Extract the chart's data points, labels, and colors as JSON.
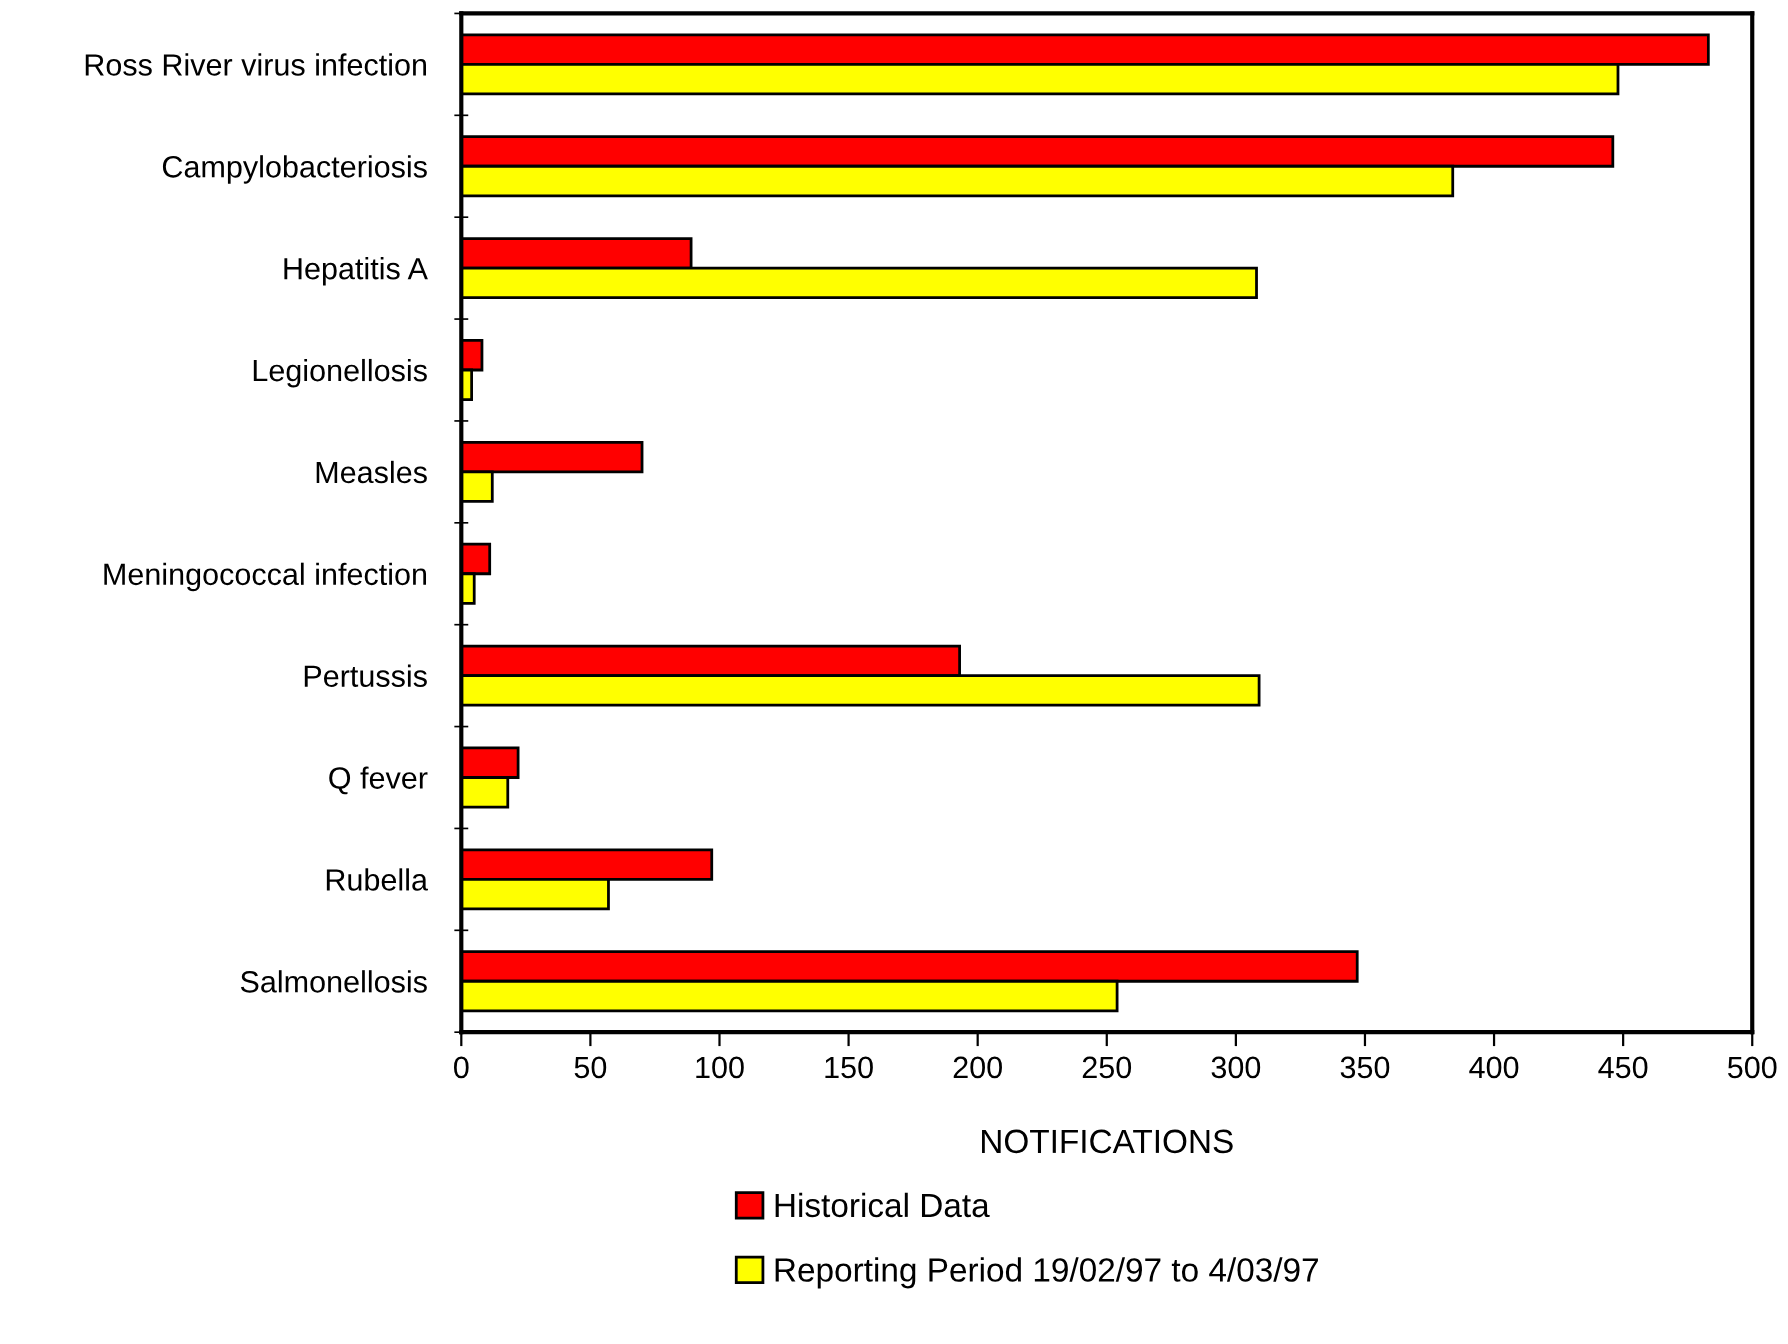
{
  "chart_data": {
    "type": "bar",
    "orientation": "horizontal",
    "xlabel": "NOTIFICATIONS",
    "categories": [
      "Ross River virus infection",
      "Campylobacteriosis",
      "Hepatitis A",
      "Legionellosis",
      "Measles",
      "Meningococcal infection",
      "Pertussis",
      "Q fever",
      "Rubella",
      "Salmonellosis"
    ],
    "series": [
      {
        "name": "Historical Data",
        "color": "#ff0000",
        "values": [
          483,
          446,
          89,
          8,
          70,
          11,
          193,
          22,
          97,
          347
        ]
      },
      {
        "name": "Reporting Period 19/02/97 to 4/03/97",
        "color": "#ffff00",
        "values": [
          448,
          384,
          308,
          4,
          12,
          5,
          309,
          18,
          57,
          254
        ]
      }
    ],
    "xlim": [
      0,
      500
    ],
    "xticks": [
      0,
      50,
      100,
      150,
      200,
      250,
      300,
      350,
      400,
      450,
      500
    ],
    "grid": false,
    "legend": "bottom"
  }
}
